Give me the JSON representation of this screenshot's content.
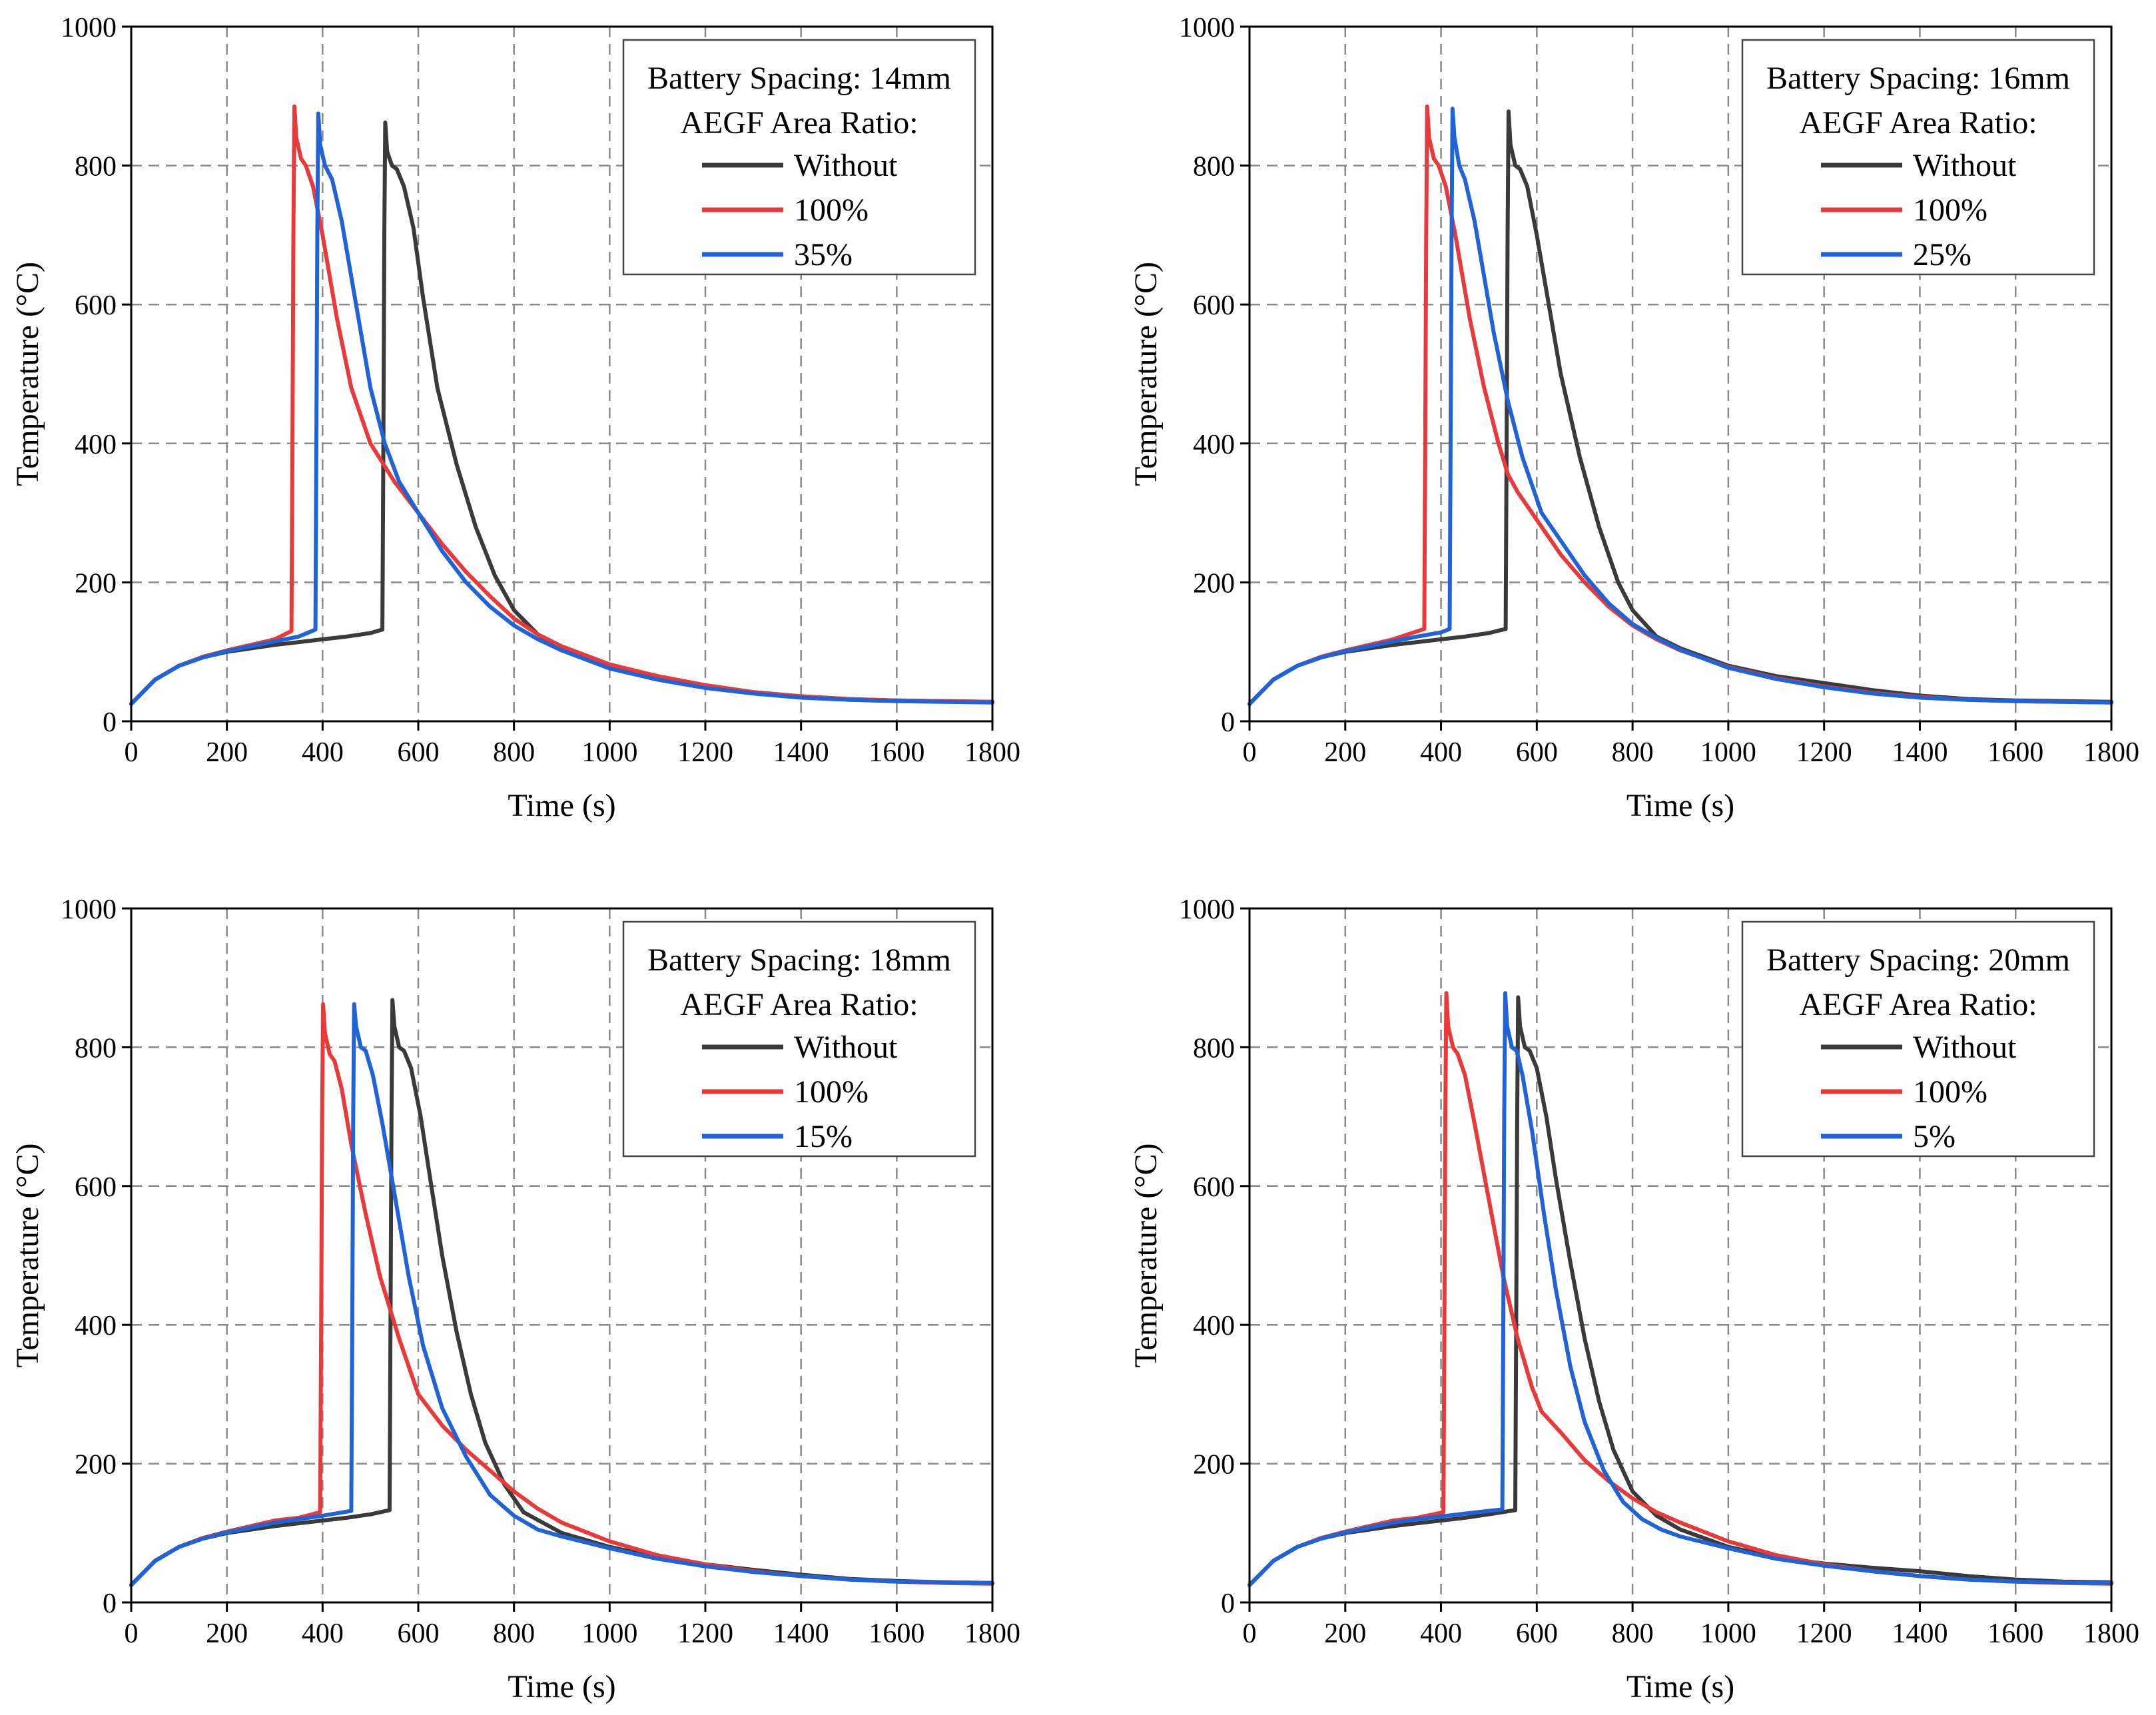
{
  "figure": {
    "colors": {
      "without": "#3a3a3a",
      "r100": "#e83a3a",
      "variant": "#1f63d6",
      "grid": "#8a8a8a"
    }
  },
  "chart_data": [
    {
      "type": "line",
      "xlabel": "Time (s)",
      "ylabel": "Temperature (°C)",
      "xlim": [
        0,
        1800
      ],
      "ylim": [
        0,
        1000
      ],
      "xticks": [
        "0",
        "200",
        "400",
        "600",
        "800",
        "1000",
        "1200",
        "1400",
        "1600",
        "1800"
      ],
      "yticks": [
        "0",
        "200",
        "400",
        "600",
        "800",
        "1000"
      ],
      "grid": true,
      "legend_position": "top-right",
      "legend_title_1": "Battery Spacing: 14mm",
      "legend_title_2": "AEGF Area Ratio:",
      "series": [
        {
          "name": "Without",
          "color": "#3a3a3a",
          "x": [
            0,
            50,
            100,
            150,
            200,
            250,
            300,
            350,
            400,
            450,
            500,
            525,
            527,
            529,
            531,
            535,
            545,
            555,
            570,
            590,
            610,
            640,
            680,
            720,
            760,
            800,
            850,
            900,
            1000,
            1100,
            1200,
            1300,
            1400,
            1500,
            1600,
            1700,
            1800
          ],
          "y": [
            25,
            60,
            80,
            92,
            100,
            105,
            110,
            114,
            118,
            122,
            127,
            132,
            400,
            700,
            862,
            820,
            800,
            795,
            770,
            710,
            610,
            480,
            370,
            280,
            210,
            160,
            125,
            105,
            80,
            65,
            52,
            42,
            36,
            32,
            30,
            29,
            28
          ]
        },
        {
          "name": "100%",
          "color": "#e83a3a",
          "x": [
            0,
            50,
            100,
            150,
            200,
            250,
            300,
            335,
            337,
            339,
            341,
            345,
            355,
            365,
            380,
            400,
            430,
            460,
            500,
            550,
            600,
            650,
            700,
            750,
            800,
            850,
            900,
            1000,
            1100,
            1200,
            1300,
            1400,
            1500,
            1600,
            1700,
            1800
          ],
          "y": [
            25,
            60,
            80,
            93,
            102,
            110,
            118,
            130,
            400,
            700,
            885,
            840,
            810,
            800,
            770,
            700,
            580,
            480,
            400,
            345,
            300,
            255,
            215,
            180,
            148,
            125,
            108,
            82,
            65,
            52,
            42,
            36,
            32,
            30,
            29,
            28
          ]
        },
        {
          "name": "35%",
          "color": "#1f63d6",
          "x": [
            0,
            50,
            100,
            150,
            200,
            250,
            300,
            350,
            385,
            387,
            389,
            391,
            395,
            405,
            420,
            440,
            460,
            480,
            500,
            530,
            560,
            600,
            650,
            700,
            750,
            800,
            850,
            900,
            1000,
            1100,
            1200,
            1300,
            1400,
            1500,
            1600,
            1700,
            1800
          ],
          "y": [
            25,
            60,
            80,
            92,
            101,
            108,
            115,
            122,
            132,
            400,
            700,
            875,
            830,
            800,
            780,
            720,
            640,
            560,
            480,
            400,
            345,
            300,
            245,
            200,
            165,
            138,
            118,
            102,
            76,
            60,
            48,
            40,
            34,
            31,
            29,
            28,
            27
          ]
        }
      ]
    },
    {
      "type": "line",
      "xlabel": "Time (s)",
      "ylabel": "Temperature (°C)",
      "xlim": [
        0,
        1800
      ],
      "ylim": [
        0,
        1000
      ],
      "xticks": [
        "0",
        "200",
        "400",
        "600",
        "800",
        "1000",
        "1200",
        "1400",
        "1600",
        "1800"
      ],
      "yticks": [
        "0",
        "200",
        "400",
        "600",
        "800",
        "1000"
      ],
      "grid": true,
      "legend_position": "top-right",
      "legend_title_1": "Battery Spacing: 16mm",
      "legend_title_2": "AEGF Area Ratio:",
      "series": [
        {
          "name": "Without",
          "color": "#3a3a3a",
          "x": [
            0,
            50,
            100,
            150,
            200,
            250,
            300,
            350,
            400,
            450,
            500,
            535,
            537,
            539,
            541,
            545,
            555,
            565,
            580,
            600,
            620,
            650,
            690,
            730,
            770,
            800,
            850,
            900,
            1000,
            1100,
            1200,
            1300,
            1400,
            1500,
            1600,
            1700,
            1800
          ],
          "y": [
            25,
            60,
            80,
            92,
            100,
            105,
            110,
            114,
            118,
            122,
            127,
            133,
            400,
            700,
            878,
            830,
            800,
            795,
            770,
            700,
            620,
            500,
            380,
            280,
            200,
            160,
            122,
            105,
            80,
            65,
            55,
            45,
            37,
            32,
            30,
            29,
            28
          ]
        },
        {
          "name": "100%",
          "color": "#e83a3a",
          "x": [
            0,
            50,
            100,
            150,
            200,
            250,
            300,
            365,
            367,
            369,
            371,
            375,
            385,
            395,
            410,
            430,
            460,
            490,
            520,
            540,
            560,
            600,
            650,
            700,
            750,
            800,
            850,
            900,
            1000,
            1100,
            1200,
            1300,
            1400,
            1500,
            1600,
            1700,
            1800
          ],
          "y": [
            25,
            60,
            80,
            93,
            102,
            110,
            118,
            133,
            400,
            700,
            885,
            840,
            810,
            800,
            770,
            700,
            580,
            480,
            400,
            355,
            330,
            290,
            240,
            200,
            165,
            138,
            118,
            102,
            78,
            62,
            50,
            41,
            35,
            31,
            29,
            28,
            27
          ]
        },
        {
          "name": "25%",
          "color": "#1f63d6",
          "x": [
            0,
            50,
            100,
            150,
            200,
            250,
            300,
            350,
            400,
            418,
            420,
            422,
            424,
            428,
            438,
            450,
            470,
            490,
            510,
            540,
            570,
            610,
            650,
            700,
            750,
            800,
            850,
            900,
            1000,
            1100,
            1200,
            1300,
            1400,
            1500,
            1600,
            1700,
            1800
          ],
          "y": [
            25,
            60,
            80,
            92,
            101,
            108,
            115,
            122,
            128,
            133,
            400,
            700,
            882,
            840,
            800,
            780,
            720,
            640,
            560,
            460,
            380,
            300,
            260,
            210,
            170,
            140,
            120,
            103,
            77,
            61,
            49,
            40,
            34,
            31,
            29,
            28,
            27
          ]
        }
      ]
    },
    {
      "type": "line",
      "xlabel": "Time (s)",
      "ylabel": "Temperature (°C)",
      "xlim": [
        0,
        1800
      ],
      "ylim": [
        0,
        1000
      ],
      "xticks": [
        "0",
        "200",
        "400",
        "600",
        "800",
        "1000",
        "1200",
        "1400",
        "1600",
        "1800"
      ],
      "yticks": [
        "0",
        "200",
        "400",
        "600",
        "800",
        "1000"
      ],
      "grid": true,
      "legend_position": "top-right",
      "legend_title_1": "Battery Spacing: 18mm",
      "legend_title_2": "AEGF Area Ratio:",
      "series": [
        {
          "name": "Without",
          "color": "#3a3a3a",
          "x": [
            0,
            50,
            100,
            150,
            200,
            250,
            300,
            350,
            400,
            450,
            500,
            540,
            542,
            544,
            546,
            550,
            560,
            570,
            585,
            605,
            625,
            650,
            680,
            710,
            740,
            780,
            820,
            900,
            1000,
            1100,
            1200,
            1300,
            1400,
            1500,
            1600,
            1700,
            1800
          ],
          "y": [
            25,
            60,
            80,
            92,
            100,
            105,
            110,
            114,
            118,
            122,
            127,
            133,
            400,
            700,
            868,
            830,
            800,
            795,
            770,
            700,
            610,
            500,
            390,
            300,
            230,
            170,
            130,
            100,
            80,
            65,
            55,
            47,
            40,
            34,
            31,
            29,
            28
          ]
        },
        {
          "name": "100%",
          "color": "#e83a3a",
          "x": [
            0,
            50,
            100,
            150,
            200,
            250,
            300,
            350,
            395,
            397,
            399,
            401,
            405,
            415,
            425,
            440,
            460,
            490,
            520,
            560,
            600,
            650,
            700,
            750,
            800,
            850,
            900,
            1000,
            1100,
            1200,
            1300,
            1400,
            1500,
            1600,
            1700,
            1800
          ],
          "y": [
            25,
            60,
            80,
            93,
            102,
            110,
            118,
            122,
            130,
            400,
            700,
            862,
            820,
            790,
            780,
            740,
            660,
            560,
            470,
            380,
            300,
            255,
            220,
            190,
            160,
            135,
            115,
            88,
            68,
            55,
            45,
            38,
            33,
            30,
            28,
            27
          ]
        },
        {
          "name": "15%",
          "color": "#1f63d6",
          "x": [
            0,
            50,
            100,
            150,
            200,
            250,
            300,
            350,
            400,
            460,
            462,
            464,
            466,
            470,
            480,
            490,
            505,
            525,
            550,
            580,
            610,
            650,
            700,
            750,
            800,
            850,
            900,
            1000,
            1100,
            1200,
            1300,
            1400,
            1500,
            1600,
            1700,
            1800
          ],
          "y": [
            25,
            60,
            80,
            92,
            101,
            108,
            115,
            120,
            125,
            132,
            400,
            700,
            862,
            830,
            800,
            795,
            760,
            690,
            590,
            470,
            370,
            280,
            210,
            155,
            125,
            105,
            95,
            78,
            63,
            52,
            44,
            38,
            33,
            30,
            29,
            28
          ]
        }
      ]
    },
    {
      "type": "line",
      "xlabel": "Time (s)",
      "ylabel": "Temperature (°C)",
      "xlim": [
        0,
        1800
      ],
      "ylim": [
        0,
        1000
      ],
      "xticks": [
        "0",
        "200",
        "400",
        "600",
        "800",
        "1000",
        "1200",
        "1400",
        "1600",
        "1800"
      ],
      "yticks": [
        "0",
        "200",
        "400",
        "600",
        "800",
        "1000"
      ],
      "grid": true,
      "legend_position": "top-right",
      "legend_title_1": "Battery Spacing: 20mm",
      "legend_title_2": "AEGF Area Ratio:",
      "series": [
        {
          "name": "Without",
          "color": "#3a3a3a",
          "x": [
            0,
            50,
            100,
            150,
            200,
            250,
            300,
            350,
            400,
            450,
            500,
            555,
            557,
            559,
            561,
            565,
            575,
            585,
            600,
            620,
            640,
            670,
            700,
            730,
            760,
            800,
            850,
            900,
            1000,
            1100,
            1200,
            1300,
            1400,
            1500,
            1600,
            1700,
            1800
          ],
          "y": [
            25,
            60,
            80,
            92,
            100,
            105,
            110,
            114,
            118,
            122,
            127,
            133,
            400,
            700,
            872,
            830,
            800,
            795,
            770,
            700,
            610,
            490,
            380,
            290,
            220,
            160,
            125,
            105,
            80,
            65,
            56,
            50,
            45,
            38,
            33,
            30,
            29
          ]
        },
        {
          "name": "100%",
          "color": "#e83a3a",
          "x": [
            0,
            50,
            100,
            150,
            200,
            250,
            300,
            350,
            405,
            407,
            409,
            411,
            415,
            425,
            435,
            450,
            470,
            500,
            530,
            560,
            590,
            610,
            650,
            700,
            750,
            800,
            850,
            900,
            1000,
            1100,
            1200,
            1300,
            1400,
            1500,
            1600,
            1700,
            1800
          ],
          "y": [
            25,
            60,
            80,
            93,
            102,
            110,
            118,
            122,
            130,
            400,
            700,
            878,
            830,
            800,
            790,
            760,
            690,
            580,
            470,
            380,
            310,
            275,
            245,
            205,
            175,
            150,
            130,
            115,
            88,
            68,
            55,
            45,
            38,
            33,
            30,
            28,
            27
          ]
        },
        {
          "name": "5%",
          "color": "#1f63d6",
          "x": [
            0,
            50,
            100,
            150,
            200,
            250,
            300,
            350,
            400,
            450,
            500,
            528,
            530,
            532,
            534,
            538,
            548,
            558,
            570,
            590,
            615,
            640,
            670,
            700,
            740,
            780,
            820,
            860,
            900,
            1000,
            1100,
            1200,
            1300,
            1400,
            1500,
            1600,
            1700,
            1800
          ],
          "y": [
            25,
            60,
            80,
            92,
            101,
            108,
            115,
            120,
            124,
            128,
            132,
            134,
            400,
            700,
            878,
            830,
            800,
            795,
            760,
            680,
            560,
            450,
            340,
            260,
            190,
            145,
            120,
            105,
            95,
            78,
            63,
            53,
            45,
            38,
            33,
            30,
            29,
            28
          ]
        }
      ]
    }
  ]
}
